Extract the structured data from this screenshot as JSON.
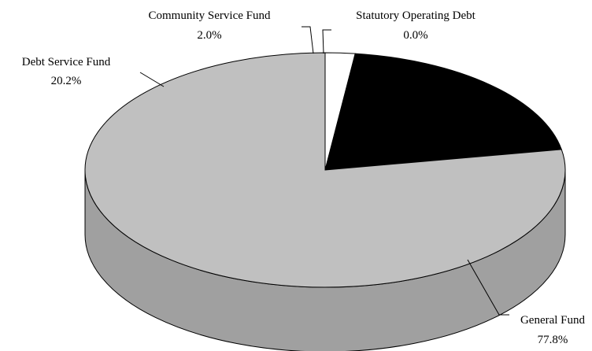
{
  "chart_data": {
    "type": "pie",
    "style": "3d",
    "title": "",
    "slices": [
      {
        "name": "General Fund",
        "value": 77.8,
        "label": "77.8%",
        "color": "#c0c0c0",
        "side_color": "#a0a0a0"
      },
      {
        "name": "Debt Service Fund",
        "value": 20.2,
        "label": "20.2%",
        "color": "#000000",
        "side_color": "#000000"
      },
      {
        "name": "Community Service Fund",
        "value": 2.0,
        "label": "2.0%",
        "color": "#ffffff",
        "side_color": "#e0e0e0"
      },
      {
        "name": "Statutory Operating Debt",
        "value": 0.0,
        "label": "0.0%",
        "color": "#ffffff",
        "side_color": "#e0e0e0"
      }
    ]
  }
}
